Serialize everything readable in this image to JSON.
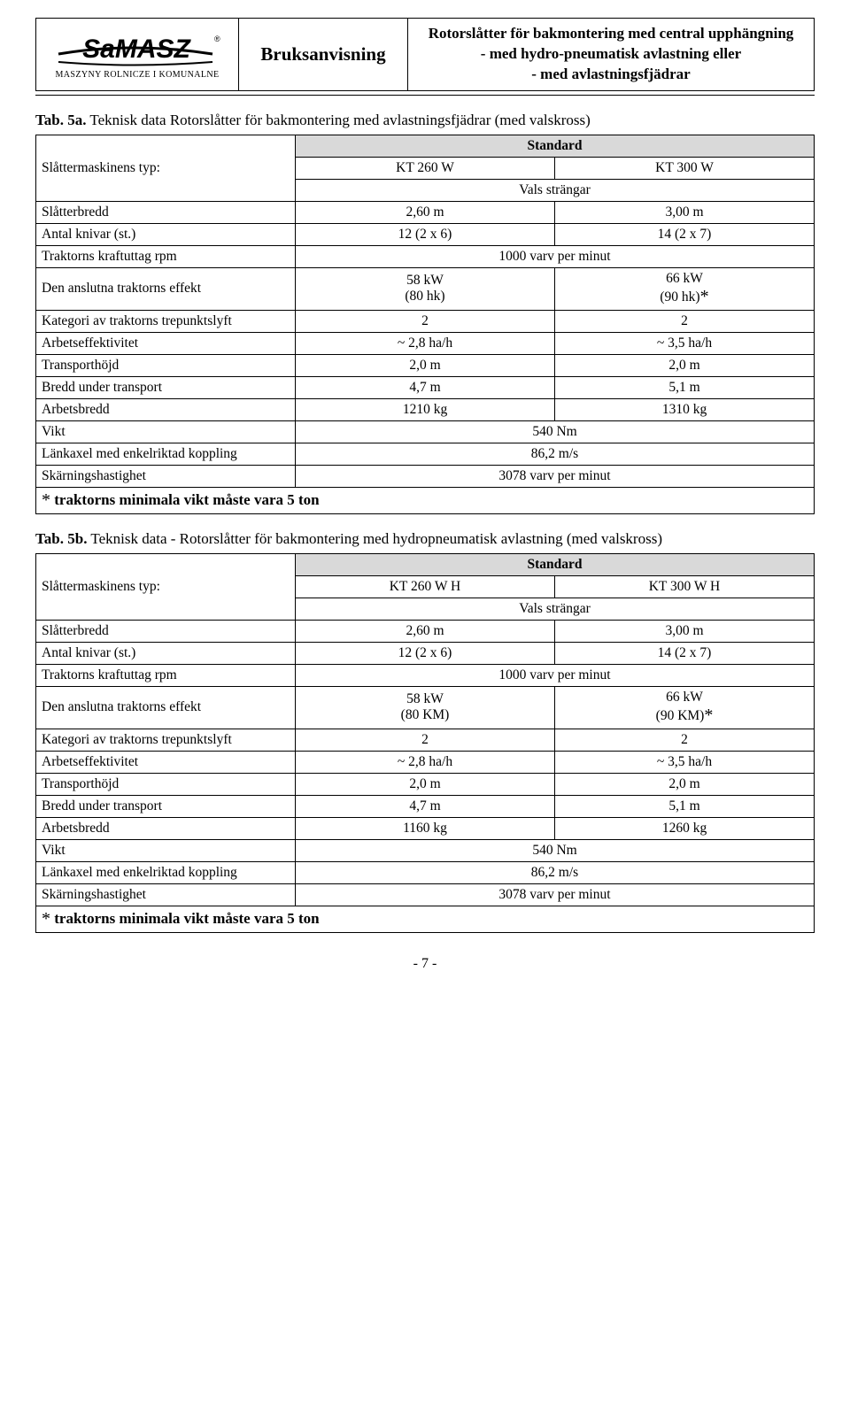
{
  "header": {
    "logo_text": "SaMASZ",
    "logo_reg": "®",
    "logo_sub": "MASZYNY ROLNICZE I KOMUNALNE",
    "doc_title": "Bruksanvisning",
    "desc_l1": "Rotorslåtter för bakmontering med central upphängning",
    "desc_l2": "- med hydro-pneumatisk avlastning eller",
    "desc_l3": "- med avlastningsfjädrar"
  },
  "tab5a": {
    "caption_bold": "Tab. 5a.",
    "caption_rest": " Teknisk data Rotorslåtter för bakmontering med avlastningsfjädrar (med valskross)",
    "rowhead_type": "Slåttermaskinens typ:",
    "standard": "Standard",
    "col1": "KT 260 W",
    "col2": "KT 300 W",
    "vals": "Vals strängar",
    "rows": [
      {
        "label": "Slåtterbredd",
        "c1": "2,60 m",
        "c2": "3,00 m"
      },
      {
        "label": "Antal knivar (st.)",
        "c1": "12 (2 x 6)",
        "c2": "14 (2 x 7)"
      },
      {
        "label": "Traktorns kraftuttag rpm",
        "span": "1000 varv per minut"
      },
      {
        "label": "Den anslutna traktorns effekt",
        "c1": "58 kW\n(80 hk)",
        "c2": "66 kW\n(90 hk)*"
      },
      {
        "label": "Kategori av traktorns trepunktslyft",
        "c1": "2",
        "c2": "2"
      },
      {
        "label": "Arbetseffektivitet",
        "c1": "~ 2,8 ha/h",
        "c2": "~ 3,5 ha/h"
      },
      {
        "label": "Transporthöjd",
        "c1": "2,0 m",
        "c2": "2,0 m"
      },
      {
        "label": "Bredd under transport",
        "c1": "4,7 m",
        "c2": "5,1 m"
      },
      {
        "label": "Arbetsbredd",
        "c1": "1210 kg",
        "c2": "1310 kg"
      },
      {
        "label": "Vikt",
        "span": "540 Nm"
      },
      {
        "label": "Länkaxel med enkelriktad koppling",
        "span": "86,2 m/s"
      },
      {
        "label": "Skärningshastighet",
        "span": "3078 varv per minut"
      }
    ],
    "footnote": "* traktorns minimala vikt måste vara 5 ton"
  },
  "tab5b": {
    "caption_bold": "Tab. 5b.",
    "caption_rest": " Teknisk data - Rotorslåtter för bakmontering med hydropneumatisk avlastning (med valskross)",
    "rowhead_type": "Slåttermaskinens typ:",
    "standard": "Standard",
    "col1": "KT 260 W H",
    "col2": "KT 300 W H",
    "vals": "Vals strängar",
    "rows": [
      {
        "label": "Slåtterbredd",
        "c1": "2,60 m",
        "c2": "3,00 m"
      },
      {
        "label": "Antal knivar (st.)",
        "c1": "12 (2 x 6)",
        "c2": "14 (2 x 7)"
      },
      {
        "label": "Traktorns kraftuttag rpm",
        "span": "1000 varv per minut"
      },
      {
        "label": "Den anslutna traktorns effekt",
        "c1": "58 kW\n(80 KM)",
        "c2": "66 kW\n(90 KM)*"
      },
      {
        "label": "Kategori av traktorns trepunktslyft",
        "c1": "2",
        "c2": "2"
      },
      {
        "label": "Arbetseffektivitet",
        "c1": "~ 2,8 ha/h",
        "c2": "~ 3,5 ha/h"
      },
      {
        "label": "Transporthöjd",
        "c1": "2,0 m",
        "c2": "2,0 m"
      },
      {
        "label": "Bredd under transport",
        "c1": "4,7 m",
        "c2": "5,1 m"
      },
      {
        "label": "Arbetsbredd",
        "c1": "1160 kg",
        "c2": "1260 kg"
      },
      {
        "label": "Vikt",
        "span": "540 Nm"
      },
      {
        "label": "Länkaxel med enkelriktad koppling",
        "span": "86,2 m/s"
      },
      {
        "label": "Skärningshastighet",
        "span": "3078 varv per minut"
      }
    ],
    "footnote": "* traktorns minimala vikt måste vara 5 ton"
  },
  "pagenum": "- 7 -"
}
